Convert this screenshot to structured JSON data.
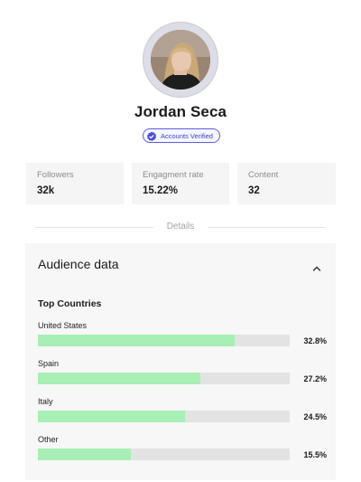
{
  "profile": {
    "name": "Jordan Seca",
    "badge": "Accounts Verified"
  },
  "stats": [
    {
      "label": "Followers",
      "value": "32k"
    },
    {
      "label": "Engagment rate",
      "value": "15.22%"
    },
    {
      "label": "Content",
      "value": "32"
    }
  ],
  "divider_label": "Details",
  "audience": {
    "title": "Audience data",
    "section_title": "Top Countries",
    "countries": [
      {
        "name": "United States",
        "percent_label": "32.8%",
        "share": 0.328
      },
      {
        "name": "Spain",
        "percent_label": "27.2%",
        "share": 0.272
      },
      {
        "name": "Italy",
        "percent_label": "24.5%",
        "share": 0.245
      },
      {
        "name": "Other",
        "percent_label": "15.5%",
        "share": 0.155
      }
    ]
  },
  "colors": {
    "accent": "#5b5fdb",
    "bar_fill": "#a7efb4",
    "bar_track": "#e3e3e3"
  }
}
